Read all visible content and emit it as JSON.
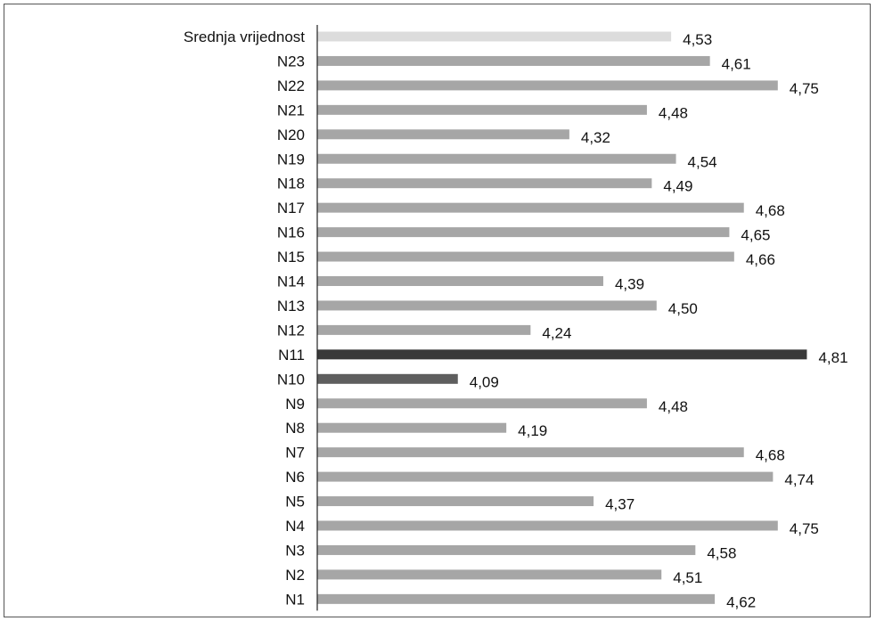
{
  "chart_data": {
    "type": "bar",
    "orientation": "horizontal",
    "title": "",
    "xlabel": "",
    "ylabel": "",
    "categories": [
      "Srednja vrijednost",
      "N23",
      "N22",
      "N21",
      "N20",
      "N19",
      "N18",
      "N17",
      "N16",
      "N15",
      "N14",
      "N13",
      "N12",
      "N11",
      "N10",
      "N9",
      "N8",
      "N7",
      "N6",
      "N5",
      "N4",
      "N3",
      "N2",
      "N1"
    ],
    "values": [
      4.53,
      4.61,
      4.75,
      4.48,
      4.32,
      4.54,
      4.49,
      4.68,
      4.65,
      4.66,
      4.39,
      4.5,
      4.24,
      4.81,
      4.09,
      4.48,
      4.19,
      4.68,
      4.74,
      4.37,
      4.75,
      4.58,
      4.51,
      4.62
    ],
    "value_labels": [
      "4,53",
      "4,61",
      "4,75",
      "4,48",
      "4,32",
      "4,54",
      "4,49",
      "4,68",
      "4,65",
      "4,66",
      "4,39",
      "4,50",
      "4,24",
      "4,81",
      "4,09",
      "4,48",
      "4,19",
      "4,68",
      "4,74",
      "4,37",
      "4,75",
      "4,58",
      "4,51",
      "4,62"
    ],
    "bar_colors": [
      "#dcdcdc",
      "#a6a6a6",
      "#a6a6a6",
      "#a6a6a6",
      "#a6a6a6",
      "#a6a6a6",
      "#a6a6a6",
      "#a6a6a6",
      "#a6a6a6",
      "#a6a6a6",
      "#a6a6a6",
      "#a6a6a6",
      "#a6a6a6",
      "#3a3a3a",
      "#5e5e5e",
      "#a6a6a6",
      "#a6a6a6",
      "#a6a6a6",
      "#a6a6a6",
      "#a6a6a6",
      "#a6a6a6",
      "#a6a6a6",
      "#a6a6a6",
      "#a6a6a6"
    ],
    "xlim": [
      3.8,
      4.9
    ],
    "grid": false,
    "legend": "none"
  }
}
